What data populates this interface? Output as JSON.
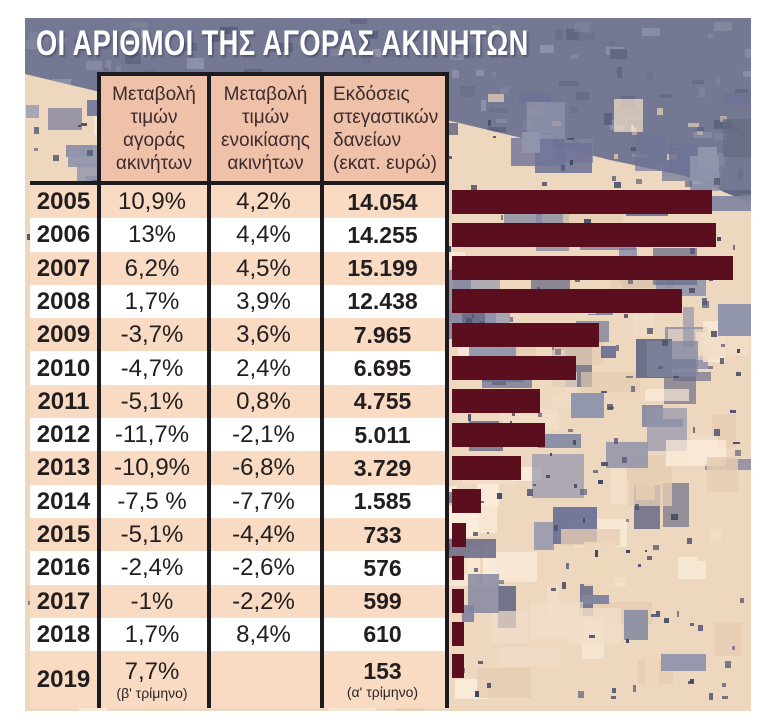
{
  "title": "ΟΙ ΑΡΙΘΜΟΙ ΤΗΣ ΑΓΟΡΑΣ ΑΚΙΝΗΤΩΝ",
  "table": {
    "columns": [
      "Μεταβολή τιμών αγοράς ακινήτων",
      "Μεταβολή τιμών ενοικίασης ακινήτων",
      "Εκδόσεις στεγαστικών δανείων (εκατ. ευρώ)"
    ]
  },
  "chart_data": {
    "type": "bar",
    "orientation": "horizontal",
    "title": "ΟΙ ΑΡΙΘΜΟΙ ΤΗΣ ΑΓΟΡΑΣ ΑΚΙΝΗΤΩΝ",
    "categories": [
      "2005",
      "2006",
      "2007",
      "2008",
      "2009",
      "2010",
      "2011",
      "2012",
      "2013",
      "2014",
      "2015",
      "2016",
      "2017",
      "2018",
      "2019"
    ],
    "series": [
      {
        "name": "Μεταβολή τιμών αγοράς ακινήτων",
        "unit": "%",
        "values": [
          10.9,
          13,
          6.2,
          1.7,
          -3.7,
          -4.7,
          -5.1,
          -11.7,
          -10.9,
          -7.5,
          -5.1,
          -2.4,
          -1,
          1.7,
          7.7
        ],
        "display": [
          "10,9%",
          "13%",
          "6,2%",
          "1,7%",
          "-3,7%",
          "-4,7%",
          "-5,1%",
          "-11,7%",
          "-10,9%",
          "-7,5 %",
          "-5,1%",
          "-2,4%",
          "-1%",
          "1,7%",
          "7,7%"
        ]
      },
      {
        "name": "Μεταβολή τιμών ενοικίασης ακινήτων",
        "unit": "%",
        "values": [
          4.2,
          4.4,
          4.5,
          3.9,
          3.6,
          2.4,
          0.8,
          -2.1,
          -6.8,
          -7.7,
          -4.4,
          -2.6,
          -2.2,
          8.4,
          null
        ],
        "display": [
          "4,2%",
          "4,4%",
          "4,5%",
          "3,9%",
          "3,6%",
          "2,4%",
          "0,8%",
          "-2,1%",
          "-6,8%",
          "-7,7%",
          "-4,4%",
          "-2,6%",
          "-2,2%",
          "8,4%",
          ""
        ]
      },
      {
        "name": "Εκδόσεις στεγαστικών δανείων (εκατ. ευρώ)",
        "unit": "εκατ. ευρώ",
        "values": [
          14054,
          14255,
          15199,
          12438,
          7965,
          6695,
          4755,
          5011,
          3729,
          1585,
          733,
          576,
          599,
          610,
          153
        ],
        "display": [
          "14.054",
          "14.255",
          "15.199",
          "12.438",
          "7.965",
          "6.695",
          "4.755",
          "5.011",
          "3.729",
          "1.585",
          "733",
          "576",
          "599",
          "610",
          "153"
        ]
      }
    ],
    "footnotes": {
      "purchase_2019": "(β' τρίμηνο)",
      "loans_2019": "(α' τρίμηνο)"
    },
    "bars_represent": "Εκδόσεις στεγαστικών δανείων (εκατ. ευρώ)",
    "xlim": [
      0,
      15199
    ],
    "grid": false,
    "legend_position": "none",
    "bar_color": "#5a0e1e"
  },
  "colors": {
    "header_bg": "#efc1a8",
    "row_alt": "#f8dbc2",
    "row_plain": "#ffffff",
    "bar": "#5a0e1e",
    "border": "#1d1b20",
    "title_text": "#ffffff",
    "photo_highlight": "#eedcc5",
    "photo_shadow": "#6e7895"
  }
}
